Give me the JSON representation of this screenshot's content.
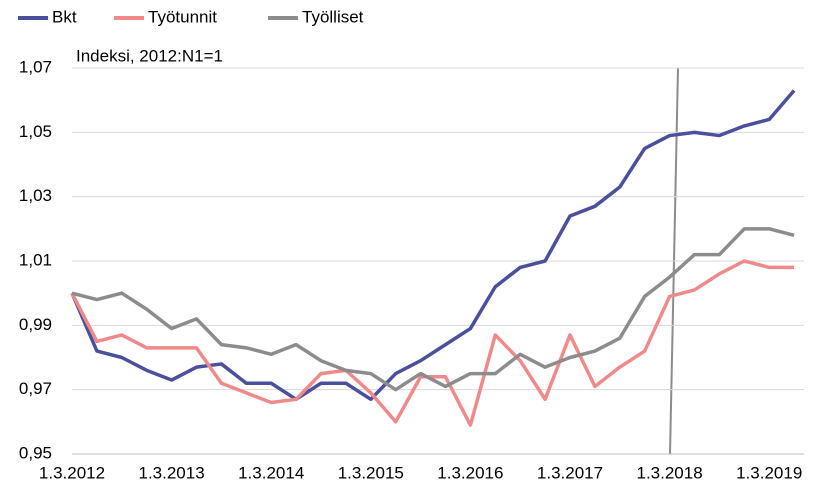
{
  "chart_data": {
    "type": "line",
    "subtitle": "Indeksi, 2012:N1=1",
    "categories": [
      "1.3.2012",
      null,
      null,
      null,
      "1.3.2013",
      null,
      null,
      null,
      "1.3.2014",
      null,
      null,
      null,
      "1.3.2015",
      null,
      null,
      null,
      "1.3.2016",
      null,
      null,
      null,
      "1.3.2017",
      null,
      null,
      null,
      "1.3.2018",
      null,
      null,
      null,
      "1.3.2019",
      null
    ],
    "series": [
      {
        "name": "Bkt",
        "color": "#4a4f9e",
        "values": [
          1.0,
          0.982,
          0.98,
          0.976,
          0.973,
          0.977,
          0.978,
          0.972,
          0.972,
          0.967,
          0.972,
          0.972,
          0.967,
          0.975,
          0.979,
          0.984,
          0.989,
          1.002,
          1.008,
          1.01,
          1.024,
          1.027,
          1.033,
          1.045,
          1.049,
          1.05,
          1.049,
          1.052,
          1.054,
          1.063
        ]
      },
      {
        "name": "Työtunnit",
        "color": "#f08a8a",
        "values": [
          1.0,
          0.985,
          0.987,
          0.983,
          0.983,
          0.983,
          0.972,
          0.969,
          0.966,
          0.967,
          0.975,
          0.976,
          0.969,
          0.96,
          0.974,
          0.974,
          0.959,
          0.987,
          0.979,
          0.967,
          0.987,
          0.971,
          0.977,
          0.982,
          0.999,
          1.001,
          1.006,
          1.01,
          1.008,
          1.008
        ]
      },
      {
        "name": "Työlliset",
        "color": "#8c8c8c",
        "values": [
          1.0,
          0.998,
          1.0,
          0.995,
          0.989,
          0.992,
          0.984,
          0.983,
          0.981,
          0.984,
          0.979,
          0.976,
          0.975,
          0.97,
          0.975,
          0.971,
          0.975,
          0.975,
          0.981,
          0.977,
          0.98,
          0.982,
          0.986,
          0.999,
          1.005,
          1.012,
          1.012,
          1.02,
          1.02,
          1.018
        ]
      }
    ],
    "ylim": [
      0.95,
      1.07
    ],
    "yticks": [
      {
        "value": 0.95,
        "label": "0,95"
      },
      {
        "value": 0.97,
        "label": "0,97"
      },
      {
        "value": 0.99,
        "label": "0,99"
      },
      {
        "value": 1.01,
        "label": "1,01"
      },
      {
        "value": 1.03,
        "label": "1,03"
      },
      {
        "value": 1.05,
        "label": "1,05"
      },
      {
        "value": 1.07,
        "label": "1,07"
      }
    ],
    "grid": true,
    "legend": "top"
  }
}
